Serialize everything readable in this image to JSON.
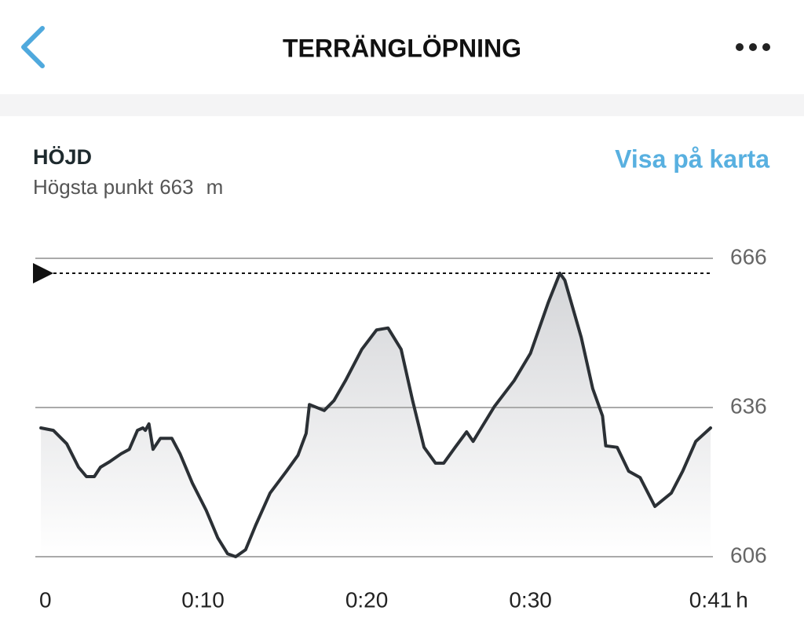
{
  "header": {
    "title": "TERRÄNGLÖPNING"
  },
  "section": {
    "title": "HÖJD",
    "highest_label": "Högsta punkt",
    "highest": 663,
    "unit": "m",
    "link": "Visa på karta"
  },
  "chart_data": {
    "type": "line",
    "color": "#2b3035",
    "x": [
      0.1,
      0.86,
      1.68,
      2.4,
      2.88,
      3.36,
      3.74,
      4.3,
      5.0,
      5.5,
      6.0,
      6.33,
      6.48,
      6.7,
      6.95,
      7.4,
      8.1,
      8.6,
      9.35,
      10.2,
      10.9,
      11.5,
      12.0,
      12.6,
      13.2,
      14.1,
      15.1,
      15.8,
      16.3,
      16.5,
      17.4,
      18.0,
      18.7,
      19.7,
      20.6,
      21.3,
      22.1,
      22.8,
      23.5,
      24.2,
      24.7,
      25.4,
      26.1,
      26.5,
      27.0,
      27.8,
      29.0,
      30.0,
      31.1,
      31.8,
      32.1,
      33.1,
      33.8,
      34.4,
      34.6,
      35.3,
      36.0,
      36.7,
      37.6,
      38.6,
      39.3,
      40.1,
      41.0
    ],
    "values": [
      631.9,
      631.4,
      628.7,
      624,
      622.1,
      622.1,
      624,
      625.1,
      626.7,
      627.6,
      631.4,
      631.9,
      631.4,
      632.7,
      627.6,
      629.8,
      629.8,
      626.7,
      620.8,
      615.3,
      609.8,
      606.6,
      606,
      607.4,
      612.2,
      618.8,
      623.2,
      626.4,
      630.8,
      636.6,
      635.4,
      637.4,
      641.4,
      647.7,
      651.6,
      652,
      647.7,
      637.4,
      628,
      624.8,
      624.8,
      628,
      631.1,
      629.2,
      631.9,
      636.2,
      641.4,
      646.9,
      657.2,
      663,
      661.6,
      650.1,
      639.8,
      634.3,
      628.3,
      628,
      623.2,
      621.9,
      616.1,
      618.8,
      623.2,
      629.2,
      631.9
    ],
    "xlim": [
      0,
      41
    ],
    "xticks": [
      0,
      {
        "value": 10,
        "label": "0:10"
      },
      {
        "value": 20,
        "label": "0:20"
      },
      {
        "value": 30,
        "label": "0:30"
      },
      {
        "value": 41,
        "label": "0:41"
      }
    ],
    "x_unit": "h",
    "ylim": [
      606,
      666
    ],
    "yticks": [
      606,
      636,
      666
    ],
    "grid": true
  }
}
